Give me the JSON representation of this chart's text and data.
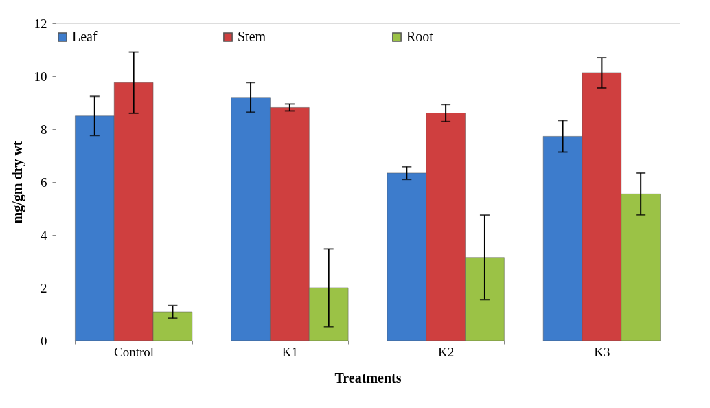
{
  "chart_data": {
    "type": "bar",
    "xlabel": "Treatments",
    "ylabel": "mg/gm dry wt",
    "categories": [
      "Control",
      "K1",
      "K2",
      "K3"
    ],
    "series": [
      {
        "name": "Leaf",
        "color": "#3d7ccc",
        "values": [
          8.5,
          9.2,
          6.34,
          7.73
        ],
        "errors": [
          0.74,
          0.56,
          0.24,
          0.6
        ]
      },
      {
        "name": "Stem",
        "color": "#cf3f3f",
        "values": [
          9.76,
          8.82,
          8.61,
          10.13
        ],
        "errors": [
          1.16,
          0.13,
          0.32,
          0.57
        ]
      },
      {
        "name": "Root",
        "color": "#9bc246",
        "values": [
          1.09,
          2.0,
          3.15,
          5.55
        ],
        "errors": [
          0.24,
          1.47,
          1.6,
          0.79
        ]
      }
    ],
    "ylim": [
      0,
      12
    ],
    "yticks": [
      0,
      2,
      4,
      6,
      8,
      10,
      12
    ],
    "grid": false,
    "legend": "top"
  }
}
